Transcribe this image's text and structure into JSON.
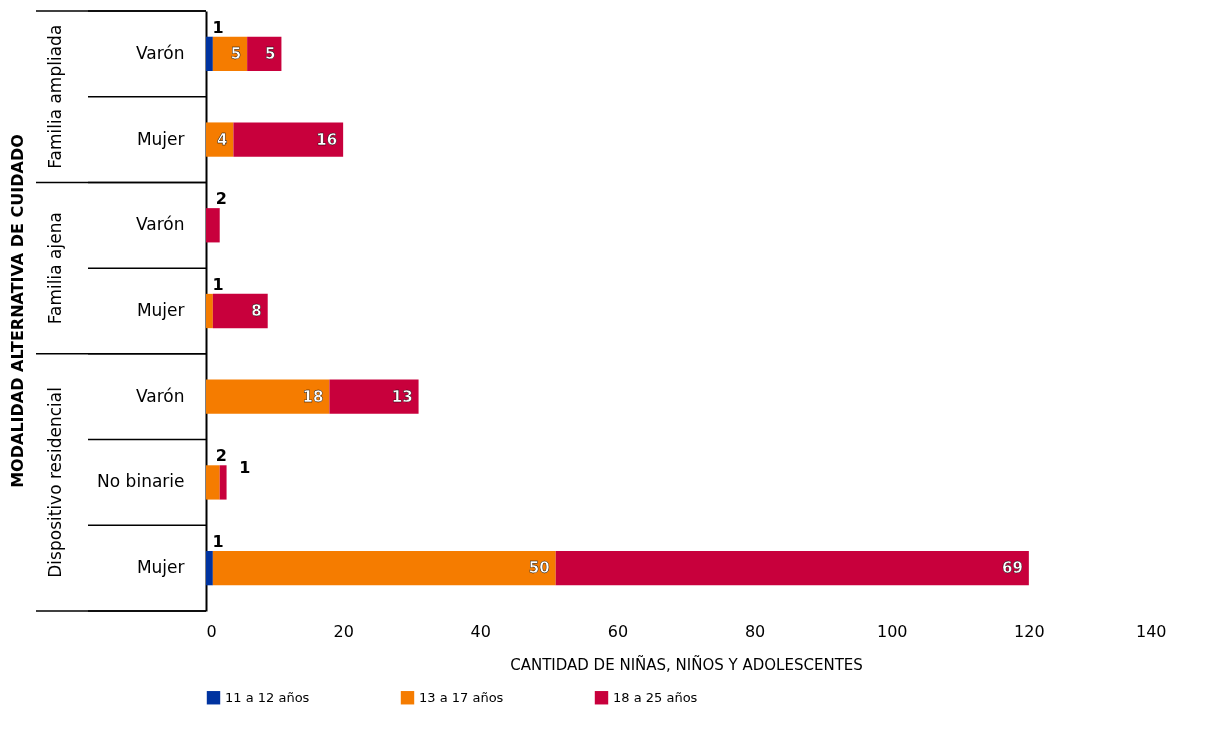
{
  "chart_data": {
    "type": "bar",
    "orientation": "horizontal",
    "stacked": true,
    "data_labels": true,
    "grid": false,
    "legend": "bottom",
    "ylabel": "MODALIDAD ALTERNATIVA DE CUIDADO",
    "xlabel": "CANTIDAD DE NIÑAS, NIÑOS Y ADOLESCENTES",
    "categories": [
      "Varón",
      "Mujer",
      "Varón",
      "Mujer",
      "Varón",
      "No binarie",
      "Mujer"
    ],
    "annotations": [
      "Familia ampliada",
      "Familia ajena",
      "Dispositivo residencial"
    ],
    "xlim": [
      0,
      140
    ],
    "xticks": [
      0,
      20,
      40,
      60,
      80,
      100,
      120,
      140
    ],
    "series": [
      {
        "name": "11 a 12 años",
        "color": "#0033a0",
        "values": [
          1,
          null,
          null,
          null,
          null,
          null,
          1
        ]
      },
      {
        "name": "13 a 17 años",
        "color": "#f57c00",
        "values": [
          5,
          4,
          null,
          1,
          18,
          2,
          50
        ]
      },
      {
        "name": "18 a 25 años",
        "color": "#c8003c",
        "values": [
          5,
          16,
          2,
          8,
          13,
          1,
          69
        ]
      }
    ]
  }
}
